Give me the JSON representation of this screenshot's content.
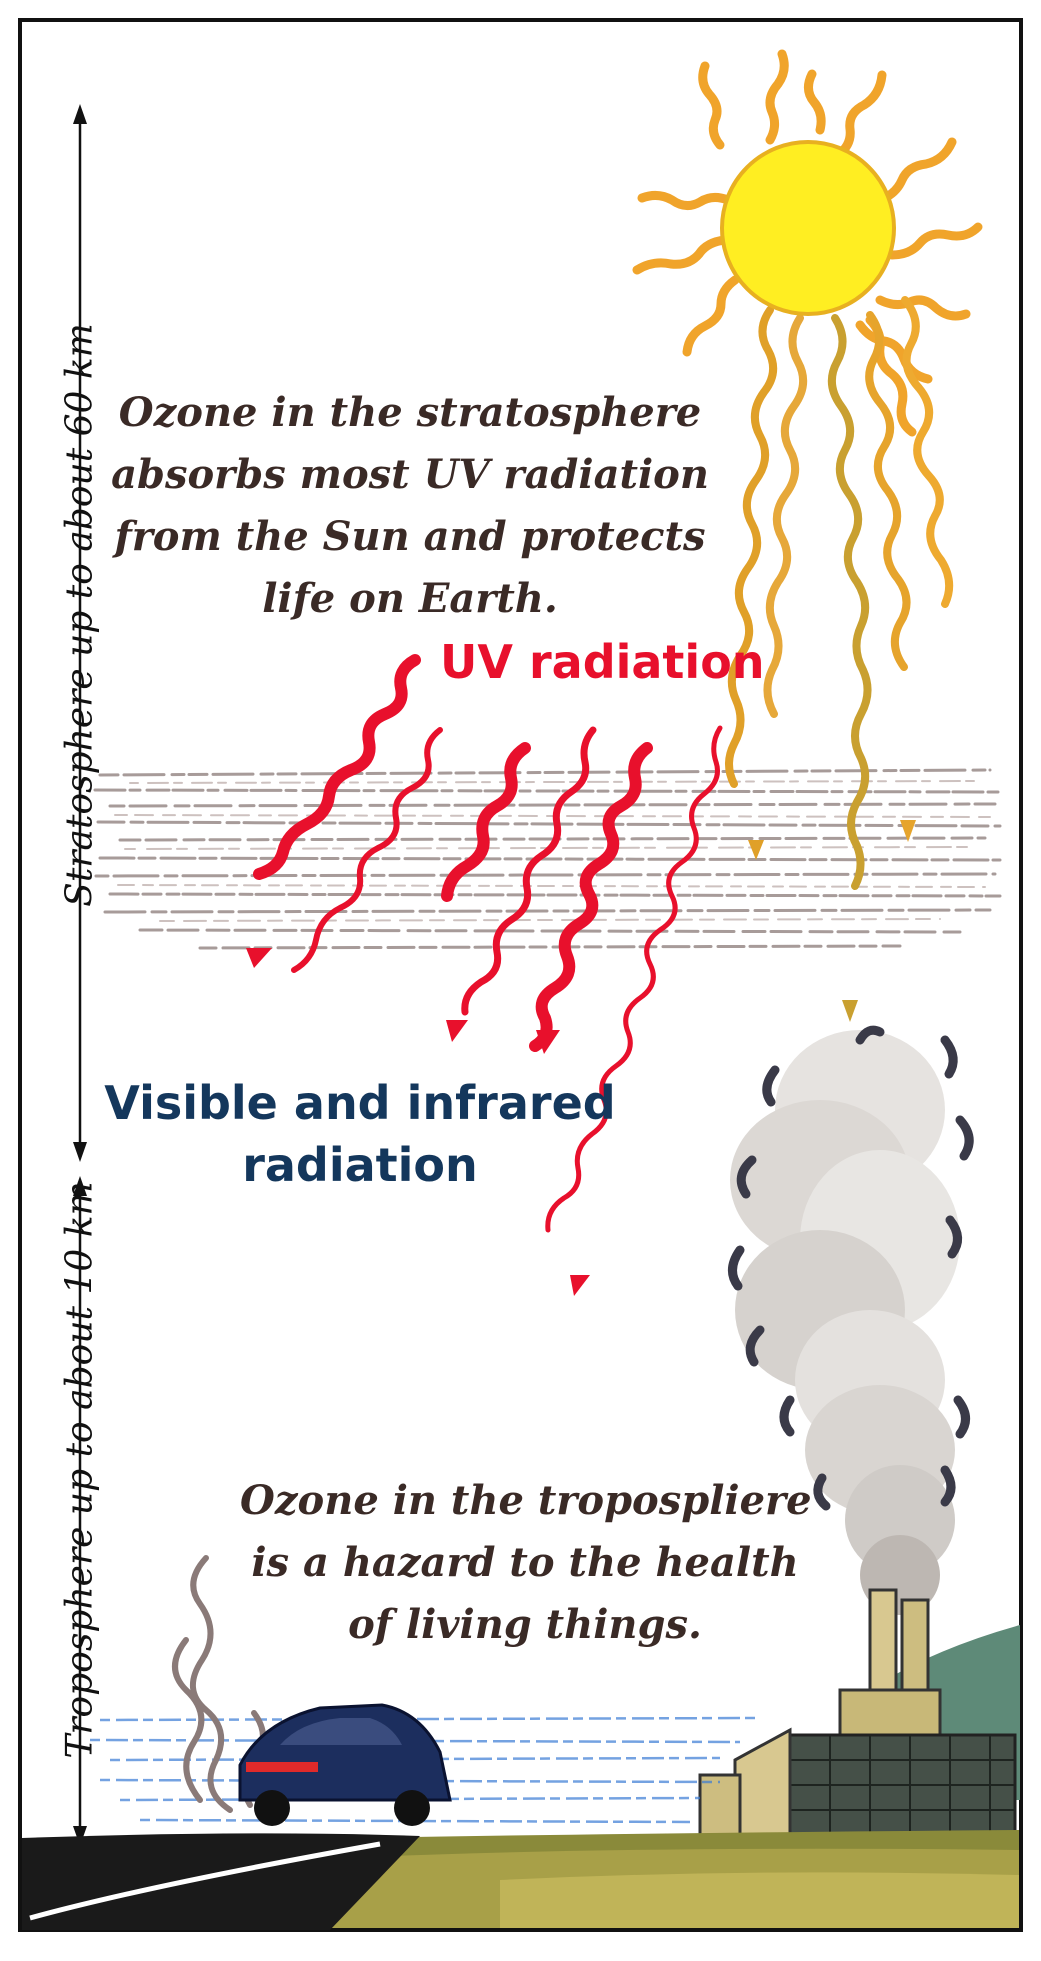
{
  "stratosphere": {
    "axis_label": "Stratosphere up to about 60 km",
    "description": [
      "Ozone in the stratosphere",
      "absorbs most UV radiation",
      "from the Sun and protects",
      "life on Earth."
    ]
  },
  "troposphere": {
    "axis_label": "Troposphere up to about 10 km",
    "description": [
      "Ozone in the tropospliere",
      "is a hazard to the health",
      "of living things."
    ]
  },
  "uv_label": "UV radiation",
  "visible_label": [
    "Visible and infrared",
    "radiation"
  ],
  "colors": {
    "uv": "#e8102c",
    "visible": "#14375c",
    "sun": "#ffee22",
    "sun_rays": "#f0a020",
    "text": "#3a2a26"
  },
  "icons": [
    "sun-icon",
    "smoke-plume-icon",
    "factory-icon",
    "car-icon",
    "road-icon"
  ]
}
